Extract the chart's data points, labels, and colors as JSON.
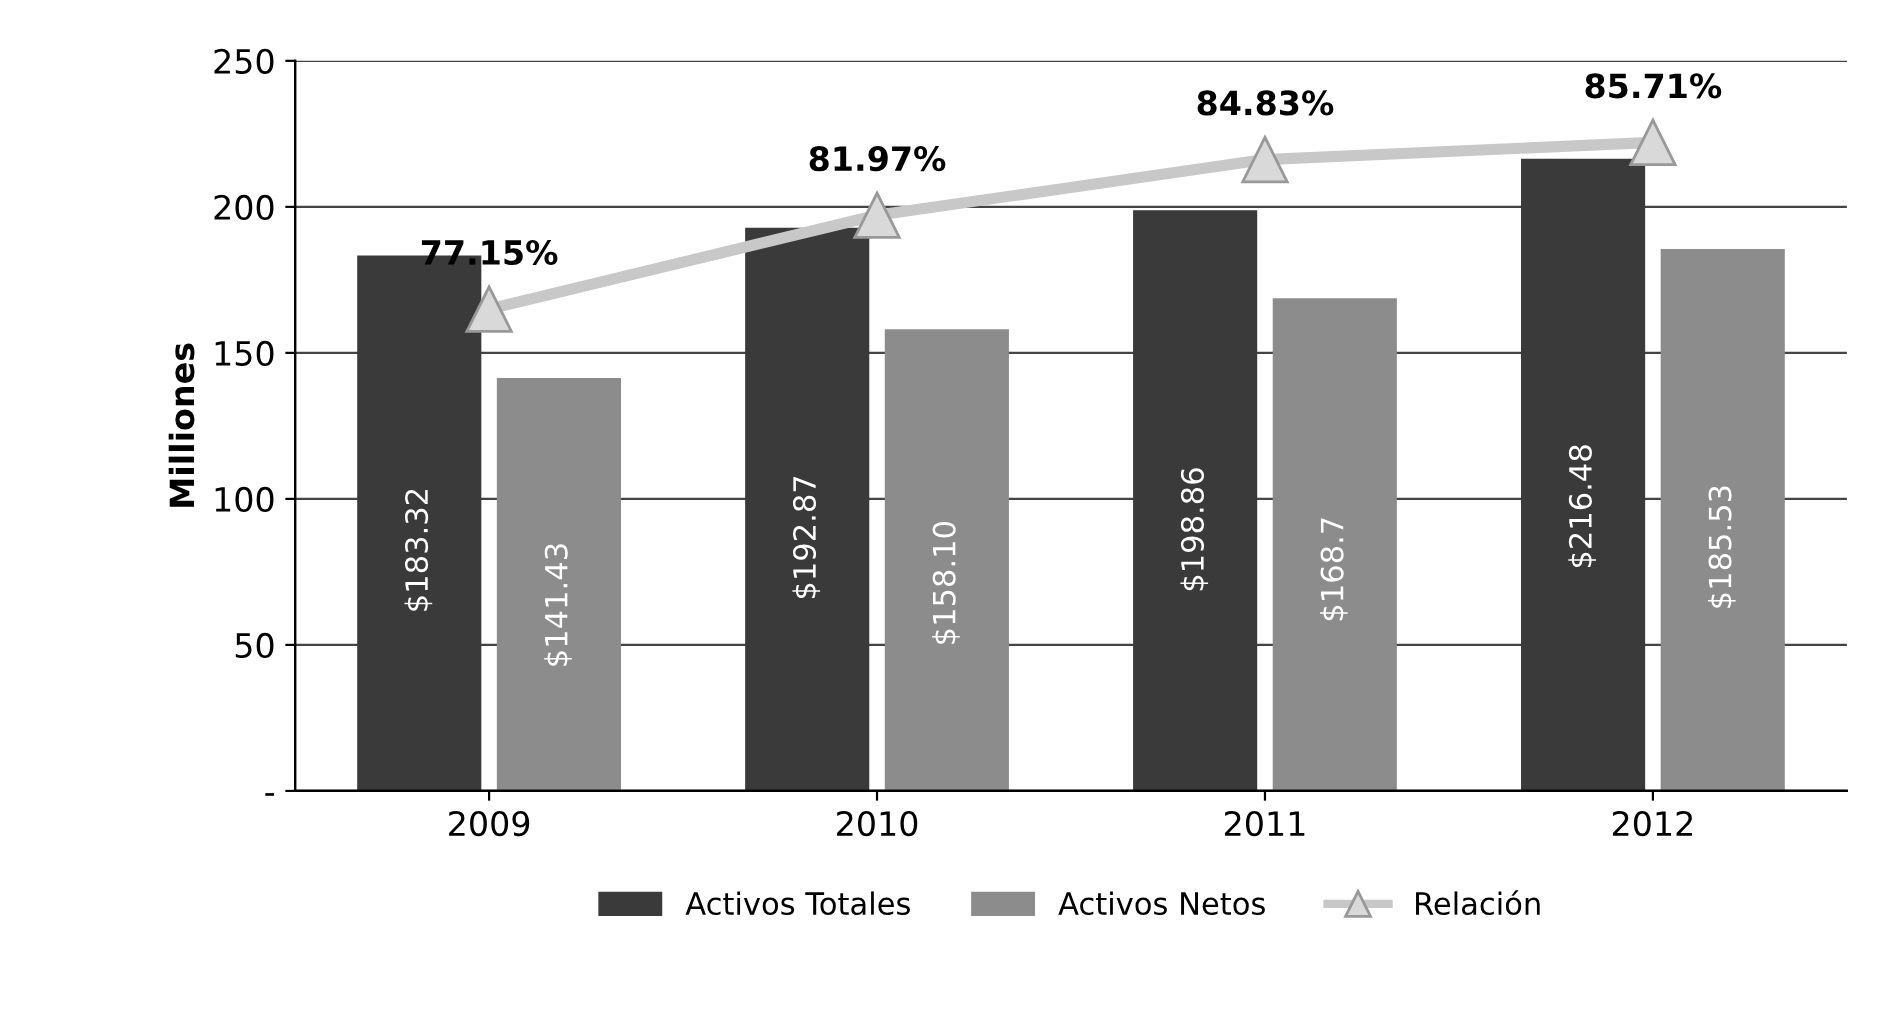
{
  "chart_data": {
    "type": "bar",
    "ylabel": "Milliones",
    "categories": [
      "2009",
      "2010",
      "2011",
      "2012"
    ],
    "series": [
      {
        "name": "Activos Totales",
        "color": "#3a3a3a",
        "values": [
          183.32,
          192.87,
          198.86,
          216.48
        ],
        "value_labels": [
          "$183.32",
          "$192.87",
          "$198.86",
          "$216.48"
        ]
      },
      {
        "name": "Activos Netos",
        "color": "#8c8c8c",
        "values": [
          141.43,
          158.1,
          168.7,
          185.53
        ],
        "value_labels": [
          "$141.43",
          "$158.10",
          "$168.7",
          "$185.53"
        ]
      },
      {
        "name": "Relación",
        "type": "line",
        "axis": "y2",
        "color": "#c8c8c8",
        "marker": "triangle",
        "values": [
          77.15,
          81.97,
          84.83,
          85.71
        ],
        "value_labels": [
          "77.15%",
          "81.97%",
          "84.83%",
          "85.71%"
        ]
      }
    ],
    "ylim": [
      0,
      250
    ],
    "yticks": [
      {
        "value": 0,
        "label": "-"
      },
      50,
      100,
      150,
      200,
      250
    ],
    "y2lim": [
      52.4,
      89.9
    ],
    "tick_labels": "xy",
    "grid": "y",
    "legend": "bottom"
  }
}
